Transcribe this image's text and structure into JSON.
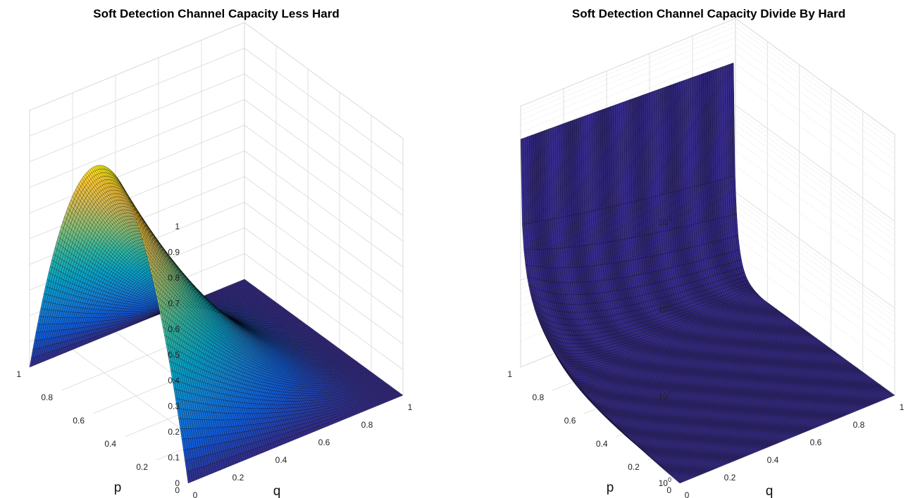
{
  "figure": {
    "background": "#ffffff",
    "mesh_edge_color": "#000000",
    "colormap": "parula",
    "colormap_stops": [
      "#352a87",
      "#0f5cdd",
      "#1481d6",
      "#06a4ca",
      "#2eb7a4",
      "#87bf77",
      "#d1bb59",
      "#fec832",
      "#f9fb0e"
    ]
  },
  "chart_data": [
    {
      "type": "surface",
      "title": "Soft Detection Channel Capacity Less Hard",
      "xlabel": "q",
      "ylabel": "p",
      "zlabel": "",
      "xlim": [
        0,
        1
      ],
      "ylim": [
        0,
        1
      ],
      "zlim": [
        0,
        1
      ],
      "zscale": "linear",
      "x_ticks": [
        "0",
        "0.2",
        "0.4",
        "0.6",
        "0.8",
        "1"
      ],
      "y_ticks": [
        "0",
        "0.2",
        "0.4",
        "0.6",
        "0.8",
        "1"
      ],
      "z_ticks": [
        "0",
        "0.1",
        "0.2",
        "0.3",
        "0.4",
        "0.5",
        "0.6",
        "0.7",
        "0.8",
        "0.9",
        "1"
      ],
      "grid": true,
      "shading": "faceted",
      "colored_by_height": true,
      "mesh_resolution": 100,
      "values_at_corners": {
        "q0_p0": 0.0,
        "q1_p0": 0.0,
        "q0_p1": 0.0,
        "q1_p1": 0.0
      },
      "values_along_q_equals_0": [
        {
          "p": 0.0,
          "z": 0.0
        },
        {
          "p": 0.2,
          "z": 0.64
        },
        {
          "p": 0.4,
          "z": 0.96
        },
        {
          "p": 0.5,
          "z": 1.0
        },
        {
          "p": 0.6,
          "z": 0.96
        },
        {
          "p": 0.8,
          "z": 0.64
        },
        {
          "p": 1.0,
          "z": 0.0
        }
      ],
      "peak": {
        "q": 0.0,
        "p": 0.5,
        "z": 1.0
      }
    },
    {
      "type": "surface",
      "title": "Soft Detection Channel Capacity Divide By Hard",
      "xlabel": "q",
      "ylabel": "p",
      "zlabel": "",
      "xlim": [
        0,
        1
      ],
      "ylim": [
        0,
        1
      ],
      "zlim": [
        1,
        1000
      ],
      "zscale": "log",
      "x_ticks": [
        "0",
        "0.2",
        "0.4",
        "0.6",
        "0.8",
        "1"
      ],
      "y_ticks": [
        "0",
        "0.2",
        "0.4",
        "0.6",
        "0.8",
        "1"
      ],
      "z_ticks": [
        {
          "base": "10",
          "exp": "0"
        },
        {
          "base": "10",
          "exp": "1"
        },
        {
          "base": "10",
          "exp": "2"
        },
        {
          "base": "10",
          "exp": "3"
        }
      ],
      "grid": true,
      "minor_grid": true,
      "shading": "faceted",
      "face_color": "#352a87",
      "mesh_resolution": 100,
      "values_along_q_equals_0": [
        {
          "p": 0.0,
          "z": 1
        },
        {
          "p": 0.2,
          "z": 1.6
        },
        {
          "p": 0.5,
          "z": 8
        },
        {
          "p": 0.8,
          "z": 80
        },
        {
          "p": 0.98,
          "z": 1000
        }
      ],
      "values_along_p_equals_1": [
        {
          "q": 0.0,
          "z": 1000
        },
        {
          "q": 0.5,
          "z": 780
        },
        {
          "q": 0.8,
          "z": 1000
        }
      ],
      "values_at_corner_q1_p0": 1
    }
  ]
}
